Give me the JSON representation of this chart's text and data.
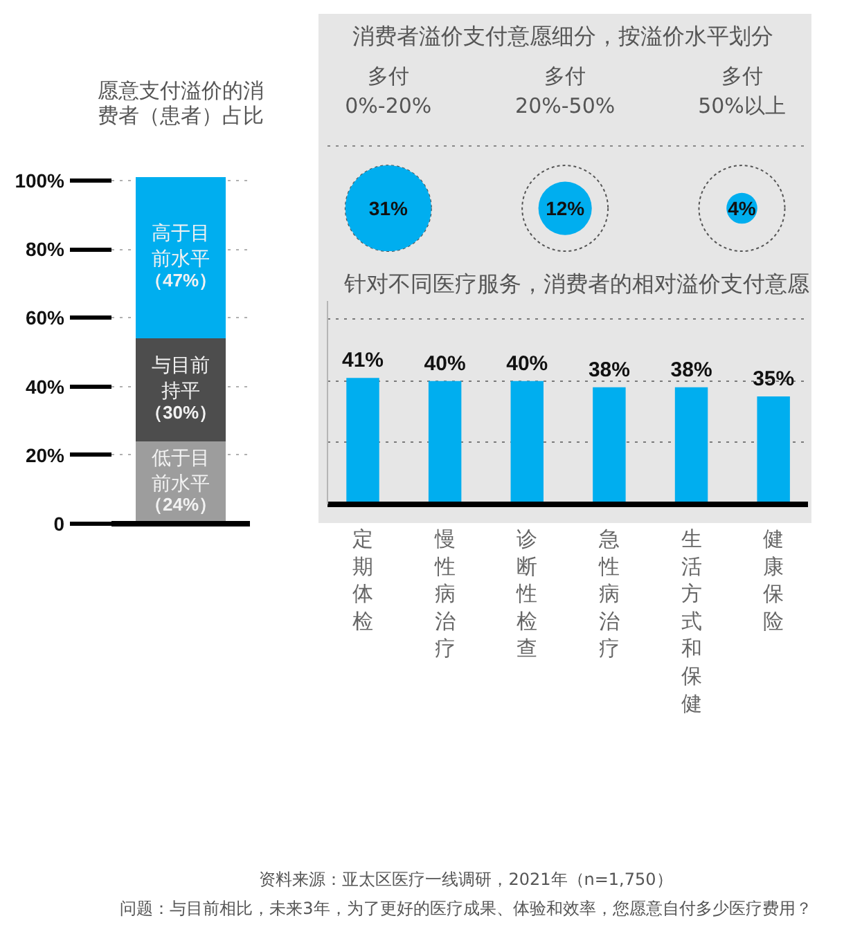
{
  "chart_data": [
    {
      "type": "bar",
      "title": "愿意支付溢价的消费者（患者）占比",
      "categories": [
        null
      ],
      "stacked": true,
      "series": [
        {
          "name": "低于目前水平",
          "color": "#9d9d9d",
          "values": [
            24
          ],
          "value_labels": [
            "（24%）"
          ]
        },
        {
          "name": "与目前持平",
          "color": "#4d4d4d",
          "values": [
            30
          ],
          "value_labels": [
            "（30%）"
          ]
        },
        {
          "name": "高于目前水平",
          "color": "#00aeef",
          "values": [
            47
          ],
          "value_labels": [
            "（47%）"
          ]
        }
      ],
      "ylim": [
        0,
        102
      ],
      "yticks": [
        0,
        {
          "value": 20,
          "label": "20%"
        },
        {
          "value": 40,
          "label": "40%"
        },
        {
          "value": 60,
          "label": "60%"
        },
        {
          "value": 80,
          "label": "80%"
        },
        {
          "value": 100,
          "label": "100%"
        }
      ],
      "grid": "y",
      "tick_labels": "y"
    },
    {
      "type": "other",
      "title": "消费者溢价支付意愿细分，按溢价水平划分",
      "categories": [
        "多付\n0%-20%",
        "多付\n20%-50%",
        "多付\n50%以上"
      ],
      "values": [
        31,
        12,
        4
      ],
      "value_labels": [
        "31%",
        "12%",
        "4%"
      ],
      "color": "#00aeef"
    },
    {
      "type": "bar",
      "title": "针对不同医疗服务，消费者的相对溢价支付意愿",
      "categories": [
        "定期体检",
        "慢性病治疗",
        "诊断性检查",
        "急性病治疗",
        "生活方式和保健",
        "健康保险"
      ],
      "values": [
        41,
        40,
        40,
        38,
        38,
        35
      ],
      "color": "#00aeef",
      "value_labels": [
        "41%",
        "40%",
        "40%",
        "38%",
        "38%",
        "35%"
      ],
      "ylim": [
        0,
        66
      ],
      "yticks": [
        20,
        40,
        60
      ],
      "grid": "y",
      "tick_labels": "x",
      "annotations": [
        "资料来源：亚太区医疗一线调研，2021年（n=1,750）",
        "问题：与目前相比，未来3年，为了更好的医疗成果、体验和效率，您愿意自付多少医疗费用？"
      ]
    }
  ]
}
